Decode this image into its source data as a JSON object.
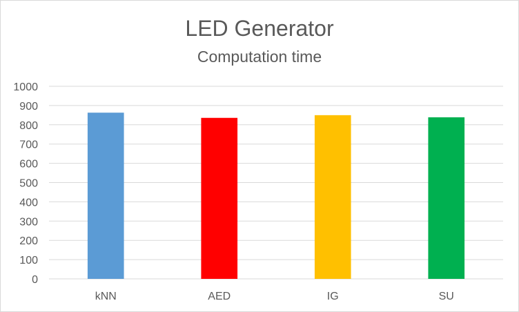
{
  "chart_data": {
    "type": "bar",
    "title": "LED Generator",
    "subtitle": "Computation time",
    "xlabel": "",
    "ylabel": "",
    "categories": [
      "kNN",
      "AED",
      "IG",
      "SU"
    ],
    "values": [
      863,
      836,
      850,
      839
    ],
    "colors": [
      "#5b9bd5",
      "#ff0000",
      "#ffc000",
      "#00b050"
    ],
    "ylim": [
      0,
      1000
    ],
    "yticks": [
      0,
      100,
      200,
      300,
      400,
      500,
      600,
      700,
      800,
      900,
      1000
    ],
    "grid": true,
    "legend": "none"
  }
}
